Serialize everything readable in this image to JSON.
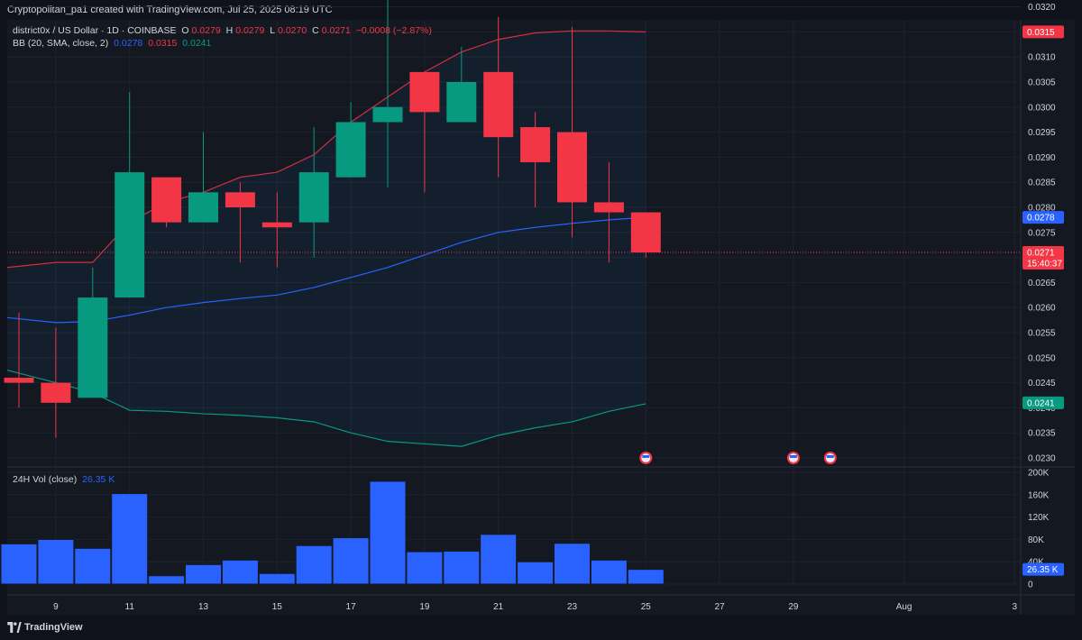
{
  "header": {
    "attribution": "Cryptopolitan_pa1 created with TradingView.com, Jul 25, 2025 08:19 UTC"
  },
  "legend": {
    "symbol": "district0x / US Dollar · 1D · COINBASE",
    "o_label": "O",
    "o_value": "0.0279",
    "h_label": "H",
    "h_value": "0.0279",
    "l_label": "L",
    "l_value": "0.0270",
    "c_label": "C",
    "c_value": "0.0271",
    "change": "−0.0008 (−2.87%)",
    "bb_label": "BB (20, SMA, close, 2)",
    "bb_basis": "0.0278",
    "bb_upper": "0.0315",
    "bb_lower": "0.0241",
    "vol_label": "24H Vol (close)",
    "vol_value": "26.35 K"
  },
  "price_tags": {
    "upper": "0.0315",
    "basis": "0.0278",
    "last": "0.0271",
    "countdown": "15:40:37",
    "lower": "0.0241",
    "volume": "26.35 K"
  },
  "footer": {
    "brand": "TradingView"
  },
  "colors": {
    "up": "#089981",
    "down": "#f23645",
    "basis": "#2962ff",
    "upper_band": "#d12f3f",
    "lower_band": "#089981",
    "volume": "#2962ff"
  },
  "chart_data": {
    "type": "candlestick",
    "x_tick_labels": [
      "9",
      "11",
      "13",
      "15",
      "17",
      "19",
      "21",
      "23",
      "25",
      "27",
      "29",
      "Aug",
      "3"
    ],
    "y_ticks": [
      "0.0230",
      "0.0235",
      "0.0240",
      "0.0245",
      "0.0250",
      "0.0255",
      "0.0260",
      "0.0265",
      "0.0270",
      "0.0275",
      "0.0280",
      "0.0285",
      "0.0290",
      "0.0295",
      "0.0300",
      "0.0305",
      "0.0310",
      "0.0315",
      "0.0320"
    ],
    "ylim": [
      0.0228,
      0.0322
    ],
    "candles": [
      {
        "day": 8,
        "o": 0.0246,
        "h": 0.0259,
        "l": 0.024,
        "c": 0.0245
      },
      {
        "day": 9,
        "o": 0.0245,
        "h": 0.0256,
        "l": 0.0234,
        "c": 0.0241
      },
      {
        "day": 10,
        "o": 0.0242,
        "h": 0.0268,
        "l": 0.0242,
        "c": 0.0262
      },
      {
        "day": 11,
        "o": 0.0262,
        "h": 0.0303,
        "l": 0.0262,
        "c": 0.0287
      },
      {
        "day": 12,
        "o": 0.0286,
        "h": 0.0286,
        "l": 0.0276,
        "c": 0.0277
      },
      {
        "day": 13,
        "o": 0.0277,
        "h": 0.0295,
        "l": 0.0277,
        "c": 0.0283
      },
      {
        "day": 14,
        "o": 0.0283,
        "h": 0.0285,
        "l": 0.0269,
        "c": 0.028
      },
      {
        "day": 15,
        "o": 0.0277,
        "h": 0.0283,
        "l": 0.0268,
        "c": 0.0276
      },
      {
        "day": 16,
        "o": 0.0277,
        "h": 0.0296,
        "l": 0.027,
        "c": 0.0287
      },
      {
        "day": 17,
        "o": 0.0286,
        "h": 0.0301,
        "l": 0.0286,
        "c": 0.0297
      },
      {
        "day": 18,
        "o": 0.0297,
        "h": 0.0322,
        "l": 0.0284,
        "c": 0.03
      },
      {
        "day": 19,
        "o": 0.0307,
        "h": 0.0307,
        "l": 0.0283,
        "c": 0.0299
      },
      {
        "day": 20,
        "o": 0.0297,
        "h": 0.0312,
        "l": 0.0297,
        "c": 0.0305
      },
      {
        "day": 21,
        "o": 0.0307,
        "h": 0.0318,
        "l": 0.0286,
        "c": 0.0294
      },
      {
        "day": 22,
        "o": 0.0296,
        "h": 0.0299,
        "l": 0.028,
        "c": 0.0289
      },
      {
        "day": 23,
        "o": 0.0295,
        "h": 0.0316,
        "l": 0.0274,
        "c": 0.0281
      },
      {
        "day": 24,
        "o": 0.0281,
        "h": 0.0289,
        "l": 0.0269,
        "c": 0.0279
      },
      {
        "day": 25,
        "o": 0.0279,
        "h": 0.0279,
        "l": 0.027,
        "c": 0.0271
      }
    ],
    "bb_upper": [
      {
        "day": 7.5,
        "v": 0.0268
      },
      {
        "day": 9,
        "v": 0.0269
      },
      {
        "day": 10,
        "v": 0.0269
      },
      {
        "day": 11,
        "v": 0.0277
      },
      {
        "day": 12,
        "v": 0.0281
      },
      {
        "day": 13,
        "v": 0.0283
      },
      {
        "day": 14,
        "v": 0.0286
      },
      {
        "day": 15,
        "v": 0.0287
      },
      {
        "day": 16,
        "v": 0.02905
      },
      {
        "day": 17,
        "v": 0.0297
      },
      {
        "day": 18,
        "v": 0.0302
      },
      {
        "day": 19,
        "v": 0.0307
      },
      {
        "day": 20,
        "v": 0.0311
      },
      {
        "day": 21,
        "v": 0.03135
      },
      {
        "day": 22,
        "v": 0.03148
      },
      {
        "day": 23,
        "v": 0.03152
      },
      {
        "day": 24,
        "v": 0.03152
      },
      {
        "day": 25,
        "v": 0.0315
      }
    ],
    "bb_basis": [
      {
        "day": 7.5,
        "v": 0.0258
      },
      {
        "day": 9,
        "v": 0.0257
      },
      {
        "day": 10,
        "v": 0.02572
      },
      {
        "day": 11,
        "v": 0.02585
      },
      {
        "day": 12,
        "v": 0.026
      },
      {
        "day": 13,
        "v": 0.0261
      },
      {
        "day": 14,
        "v": 0.02618
      },
      {
        "day": 15,
        "v": 0.02625
      },
      {
        "day": 16,
        "v": 0.0264
      },
      {
        "day": 17,
        "v": 0.0266
      },
      {
        "day": 18,
        "v": 0.0268
      },
      {
        "day": 19,
        "v": 0.02705
      },
      {
        "day": 20,
        "v": 0.0273
      },
      {
        "day": 21,
        "v": 0.0275
      },
      {
        "day": 22,
        "v": 0.0276
      },
      {
        "day": 23,
        "v": 0.02768
      },
      {
        "day": 24,
        "v": 0.02775
      },
      {
        "day": 25,
        "v": 0.0278
      }
    ],
    "bb_lower": [
      {
        "day": 7.5,
        "v": 0.02475
      },
      {
        "day": 9,
        "v": 0.0245
      },
      {
        "day": 10,
        "v": 0.0243
      },
      {
        "day": 11,
        "v": 0.02395
      },
      {
        "day": 12,
        "v": 0.02393
      },
      {
        "day": 13,
        "v": 0.02388
      },
      {
        "day": 14,
        "v": 0.02385
      },
      {
        "day": 15,
        "v": 0.0238
      },
      {
        "day": 16,
        "v": 0.02372
      },
      {
        "day": 17,
        "v": 0.0235
      },
      {
        "day": 18,
        "v": 0.02333
      },
      {
        "day": 19,
        "v": 0.02328
      },
      {
        "day": 20,
        "v": 0.02323
      },
      {
        "day": 21,
        "v": 0.02345
      },
      {
        "day": 22,
        "v": 0.0236
      },
      {
        "day": 23,
        "v": 0.02372
      },
      {
        "day": 24,
        "v": 0.02393
      },
      {
        "day": 25,
        "v": 0.02408
      }
    ],
    "volume_ticks": [
      "0",
      "40K",
      "80K",
      "120K",
      "160K",
      "200K"
    ],
    "volume_ylim": [
      0,
      200000
    ],
    "volume": [
      {
        "day": 8,
        "v": 72000
      },
      {
        "day": 9,
        "v": 80000
      },
      {
        "day": 10,
        "v": 64000
      },
      {
        "day": 11,
        "v": 162000
      },
      {
        "day": 12,
        "v": 15000
      },
      {
        "day": 13,
        "v": 35000
      },
      {
        "day": 14,
        "v": 43000
      },
      {
        "day": 15,
        "v": 19000
      },
      {
        "day": 16,
        "v": 69000
      },
      {
        "day": 17,
        "v": 83000
      },
      {
        "day": 18,
        "v": 184000
      },
      {
        "day": 19,
        "v": 58000
      },
      {
        "day": 20,
        "v": 59000
      },
      {
        "day": 21,
        "v": 89000
      },
      {
        "day": 22,
        "v": 40000
      },
      {
        "day": 23,
        "v": 73000
      },
      {
        "day": 24,
        "v": 43000
      },
      {
        "day": 25,
        "v": 26350
      }
    ],
    "event_markers": [
      25,
      29,
      30
    ],
    "last_price": 0.0271
  }
}
